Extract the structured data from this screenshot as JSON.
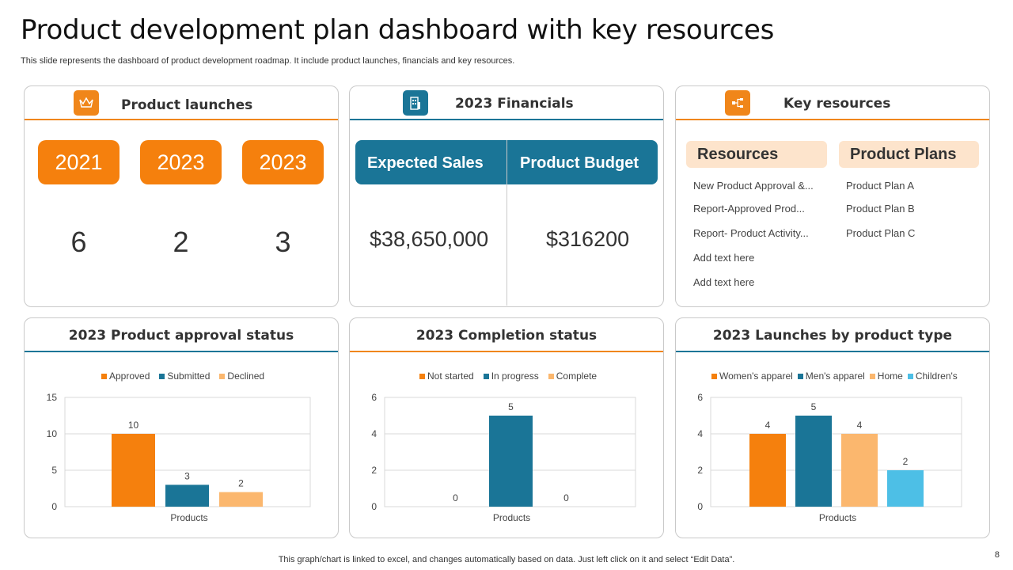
{
  "slide": {
    "title": "Product development plan dashboard with key resources",
    "subtitle": "This slide represents the dashboard of product development roadmap. It include product launches, financials and key resources.",
    "footer": "This graph/chart is linked to excel,  and changes automatically based on data. Just left click on it and select “Edit Data”.",
    "page_number": "8"
  },
  "colors": {
    "orange": "#f5800d",
    "teal": "#1a7597",
    "light_orange": "#fbb76e",
    "light_blue": "#4dbfe6",
    "peach": "#fde4cc"
  },
  "product_launches": {
    "title": "Product launches",
    "icon": "crown-icon",
    "years": [
      "2021",
      "2023",
      "2023"
    ],
    "counts": [
      "6",
      "2",
      "3"
    ]
  },
  "financials": {
    "title": "2023 Financials",
    "icon": "building-icon",
    "expected_sales_label": "Expected Sales",
    "product_budget_label": "Product Budget",
    "expected_sales_value": "$38,650,000",
    "product_budget_value": "$316200"
  },
  "key_resources": {
    "title": "Key resources",
    "icon": "flowchart-icon",
    "resources_label": "Resources",
    "plans_label": "Product Plans",
    "resources": [
      "New Product Approval  &...",
      "Report-Approved   Prod...",
      "Report-  Product Activity...",
      "Add text here",
      "Add text here"
    ],
    "plans": [
      "Product Plan A",
      "Product Plan B",
      "Product Plan C"
    ]
  },
  "chart_data": [
    {
      "type": "bar",
      "title": "2023 Product approval status",
      "categories": [
        "Products"
      ],
      "series": [
        {
          "name": "Approved",
          "values": [
            10
          ],
          "color": "#f5800d"
        },
        {
          "name": "Submitted",
          "values": [
            3
          ],
          "color": "#1a7597"
        },
        {
          "name": "Declined",
          "values": [
            2
          ],
          "color": "#fbb76e"
        }
      ],
      "ylim": [
        0,
        15
      ],
      "yticks": [
        0,
        5,
        10,
        15
      ],
      "legend": "top"
    },
    {
      "type": "bar",
      "title": "2023 Completion status",
      "categories": [
        "Products"
      ],
      "series": [
        {
          "name": "Not started",
          "values": [
            0
          ],
          "color": "#f5800d"
        },
        {
          "name": "In progress",
          "values": [
            5
          ],
          "color": "#1a7597"
        },
        {
          "name": "Complete",
          "values": [
            0
          ],
          "color": "#fbb76e"
        }
      ],
      "ylim": [
        0,
        6
      ],
      "yticks": [
        0,
        2,
        4,
        6
      ],
      "legend": "top"
    },
    {
      "type": "bar",
      "title": "2023 Launches by product type",
      "categories": [
        "Products"
      ],
      "series": [
        {
          "name": "Women's apparel",
          "values": [
            4
          ],
          "color": "#f5800d"
        },
        {
          "name": "Men's apparel",
          "values": [
            5
          ],
          "color": "#1a7597"
        },
        {
          "name": "Home",
          "values": [
            4
          ],
          "color": "#fbb76e"
        },
        {
          "name": "Children's",
          "values": [
            2
          ],
          "color": "#4dbfe6"
        }
      ],
      "ylim": [
        0,
        6
      ],
      "yticks": [
        0,
        2,
        4,
        6
      ],
      "legend": "top"
    }
  ]
}
